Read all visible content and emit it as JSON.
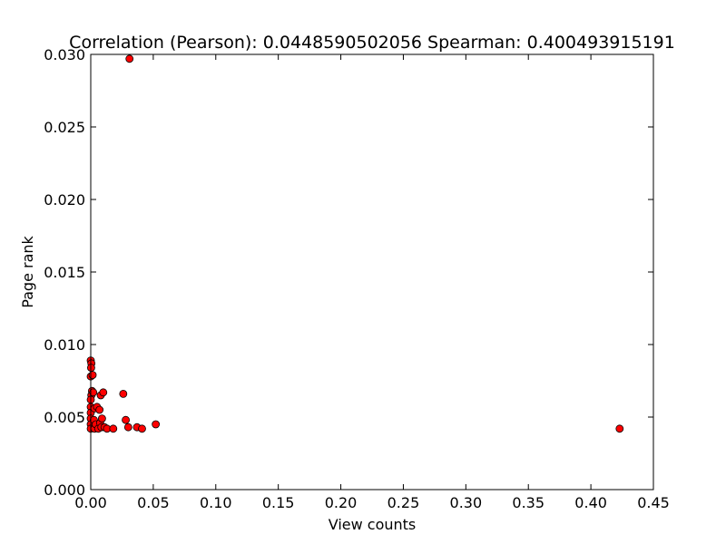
{
  "chart_data": {
    "type": "scatter",
    "title": "Correlation (Pearson): 0.0448590502056 Spearman: 0.400493915191",
    "xlabel": "View counts",
    "ylabel": "Page rank",
    "xlim": [
      0,
      0.45
    ],
    "ylim": [
      0,
      0.03
    ],
    "xticks": [
      "0.00",
      "0.05",
      "0.10",
      "0.15",
      "0.20",
      "0.25",
      "0.30",
      "0.35",
      "0.40",
      "0.45"
    ],
    "yticks": [
      "0.000",
      "0.005",
      "0.010",
      "0.015",
      "0.020",
      "0.025",
      "0.030"
    ],
    "grid": false,
    "marker_color": "#ff0000",
    "marker_edge_color": "#000000",
    "points": [
      {
        "x": 0.031,
        "y": 0.0297
      },
      {
        "x": 0.423,
        "y": 0.0042
      },
      {
        "x": 0.0,
        "y": 0.0089
      },
      {
        "x": 0.0005,
        "y": 0.0087
      },
      {
        "x": 0.0003,
        "y": 0.0084
      },
      {
        "x": 0.0,
        "y": 0.0078
      },
      {
        "x": 0.0015,
        "y": 0.0079
      },
      {
        "x": 0.001,
        "y": 0.0068
      },
      {
        "x": 0.0005,
        "y": 0.0065
      },
      {
        "x": 0.002,
        "y": 0.0067
      },
      {
        "x": 0.0,
        "y": 0.0062
      },
      {
        "x": 0.0,
        "y": 0.0057
      },
      {
        "x": 0.0,
        "y": 0.0053
      },
      {
        "x": 0.0,
        "y": 0.0049
      },
      {
        "x": 0.0,
        "y": 0.0045
      },
      {
        "x": 0.0,
        "y": 0.0042
      },
      {
        "x": 0.0025,
        "y": 0.0048
      },
      {
        "x": 0.003,
        "y": 0.0056
      },
      {
        "x": 0.003,
        "y": 0.0042
      },
      {
        "x": 0.004,
        "y": 0.0045
      },
      {
        "x": 0.005,
        "y": 0.0057
      },
      {
        "x": 0.006,
        "y": 0.0042
      },
      {
        "x": 0.007,
        "y": 0.0055
      },
      {
        "x": 0.0075,
        "y": 0.0046
      },
      {
        "x": 0.008,
        "y": 0.0065
      },
      {
        "x": 0.0085,
        "y": 0.0043
      },
      {
        "x": 0.009,
        "y": 0.0049
      },
      {
        "x": 0.01,
        "y": 0.0067
      },
      {
        "x": 0.011,
        "y": 0.0043
      },
      {
        "x": 0.013,
        "y": 0.0042
      },
      {
        "x": 0.018,
        "y": 0.0042
      },
      {
        "x": 0.026,
        "y": 0.0066
      },
      {
        "x": 0.028,
        "y": 0.0048
      },
      {
        "x": 0.03,
        "y": 0.0043
      },
      {
        "x": 0.037,
        "y": 0.0043
      },
      {
        "x": 0.041,
        "y": 0.0042
      },
      {
        "x": 0.052,
        "y": 0.0045
      }
    ]
  }
}
